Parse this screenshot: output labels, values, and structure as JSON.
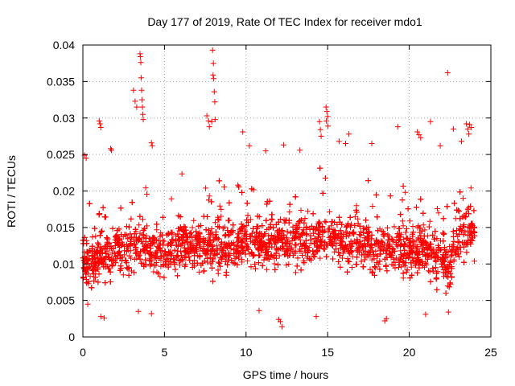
{
  "chart_data": {
    "type": "scatter",
    "title": "Day 177 of 2019, Rate Of TEC Index for receiver mdo1",
    "xlabel": "GPS time / hours",
    "ylabel": "ROTI / TECUs",
    "xlim": [
      0,
      25
    ],
    "ylim": [
      0,
      0.04
    ],
    "xticks": [
      0,
      5,
      10,
      15,
      20,
      25
    ],
    "yticks": [
      0,
      0.005,
      0.01,
      0.015,
      0.02,
      0.025,
      0.03,
      0.035,
      0.04
    ],
    "grid": true,
    "marker": "+",
    "series": [
      {
        "name": "ROTI",
        "color": "#ff0000",
        "x_range": [
          0,
          24
        ],
        "baseline_profile": [
          [
            0,
            0.011
          ],
          [
            0.5,
            0.01
          ],
          [
            1,
            0.011
          ],
          [
            2,
            0.012
          ],
          [
            3,
            0.012
          ],
          [
            3.5,
            0.013
          ],
          [
            4,
            0.012
          ],
          [
            5,
            0.011
          ],
          [
            6,
            0.013
          ],
          [
            7,
            0.012
          ],
          [
            8,
            0.012
          ],
          [
            9,
            0.012
          ],
          [
            10,
            0.013
          ],
          [
            11,
            0.013
          ],
          [
            12,
            0.013
          ],
          [
            13,
            0.013
          ],
          [
            14,
            0.013
          ],
          [
            15,
            0.014
          ],
          [
            16,
            0.013
          ],
          [
            17,
            0.013
          ],
          [
            18,
            0.012
          ],
          [
            19,
            0.012
          ],
          [
            20,
            0.012
          ],
          [
            21,
            0.012
          ],
          [
            22,
            0.011
          ],
          [
            22.5,
            0.01
          ],
          [
            23,
            0.013
          ],
          [
            23.5,
            0.015
          ],
          [
            24,
            0.014
          ]
        ],
        "notable_points": [
          [
            0.1,
            0.0249
          ],
          [
            0.2,
            0.0245
          ],
          [
            1.0,
            0.0296
          ],
          [
            1.05,
            0.0292
          ],
          [
            1.1,
            0.0287
          ],
          [
            1.7,
            0.0258
          ],
          [
            1.75,
            0.0256
          ],
          [
            3.1,
            0.0338
          ],
          [
            3.2,
            0.0323
          ],
          [
            3.3,
            0.0315
          ],
          [
            3.5,
            0.0388
          ],
          [
            3.52,
            0.0384
          ],
          [
            3.55,
            0.0376
          ],
          [
            3.57,
            0.0355
          ],
          [
            3.6,
            0.0338
          ],
          [
            3.62,
            0.0325
          ],
          [
            3.65,
            0.0315
          ],
          [
            3.68,
            0.0305
          ],
          [
            3.7,
            0.0298
          ],
          [
            4.2,
            0.0266
          ],
          [
            4.25,
            0.0262
          ],
          [
            7.6,
            0.0303
          ],
          [
            7.7,
            0.0296
          ],
          [
            7.75,
            0.0288
          ],
          [
            7.95,
            0.0393
          ],
          [
            8.0,
            0.0375
          ],
          [
            7.98,
            0.0359
          ],
          [
            8.02,
            0.0354
          ],
          [
            8.05,
            0.0336
          ],
          [
            8.08,
            0.0322
          ],
          [
            7.9,
            0.0295
          ],
          [
            8.1,
            0.0298
          ],
          [
            9.8,
            0.0281
          ],
          [
            10.2,
            0.0262
          ],
          [
            11.2,
            0.0255
          ],
          [
            12.3,
            0.0263
          ],
          [
            13.3,
            0.0256
          ],
          [
            14.5,
            0.0295
          ],
          [
            14.55,
            0.0284
          ],
          [
            14.6,
            0.0275
          ],
          [
            14.9,
            0.0315
          ],
          [
            14.95,
            0.0309
          ],
          [
            15.0,
            0.0302
          ],
          [
            14.92,
            0.0296
          ],
          [
            15.02,
            0.0289
          ],
          [
            15.7,
            0.0268
          ],
          [
            16.1,
            0.0265
          ],
          [
            16.3,
            0.0278
          ],
          [
            17.7,
            0.0265
          ],
          [
            19.3,
            0.0288
          ],
          [
            20.5,
            0.0281
          ],
          [
            20.6,
            0.0277
          ],
          [
            20.7,
            0.0273
          ],
          [
            21.3,
            0.0295
          ],
          [
            21.9,
            0.0262
          ],
          [
            22.35,
            0.0362
          ],
          [
            22.7,
            0.0285
          ],
          [
            23.2,
            0.0268
          ],
          [
            23.5,
            0.0292
          ],
          [
            23.6,
            0.0285
          ],
          [
            23.7,
            0.0291
          ],
          [
            23.8,
            0.0287
          ],
          [
            23.65,
            0.0278
          ],
          [
            0.3,
            0.0045
          ],
          [
            1.1,
            0.0028
          ],
          [
            1.3,
            0.0026
          ],
          [
            3.4,
            0.0035
          ],
          [
            4.2,
            0.0032
          ],
          [
            10.8,
            0.0036
          ],
          [
            12.0,
            0.0024
          ],
          [
            12.2,
            0.0014
          ],
          [
            12.1,
            0.0021
          ],
          [
            14.3,
            0.0028
          ],
          [
            18.5,
            0.0022
          ],
          [
            18.6,
            0.0025
          ],
          [
            21.0,
            0.0031
          ],
          [
            22.4,
            0.0034
          ]
        ]
      }
    ]
  }
}
